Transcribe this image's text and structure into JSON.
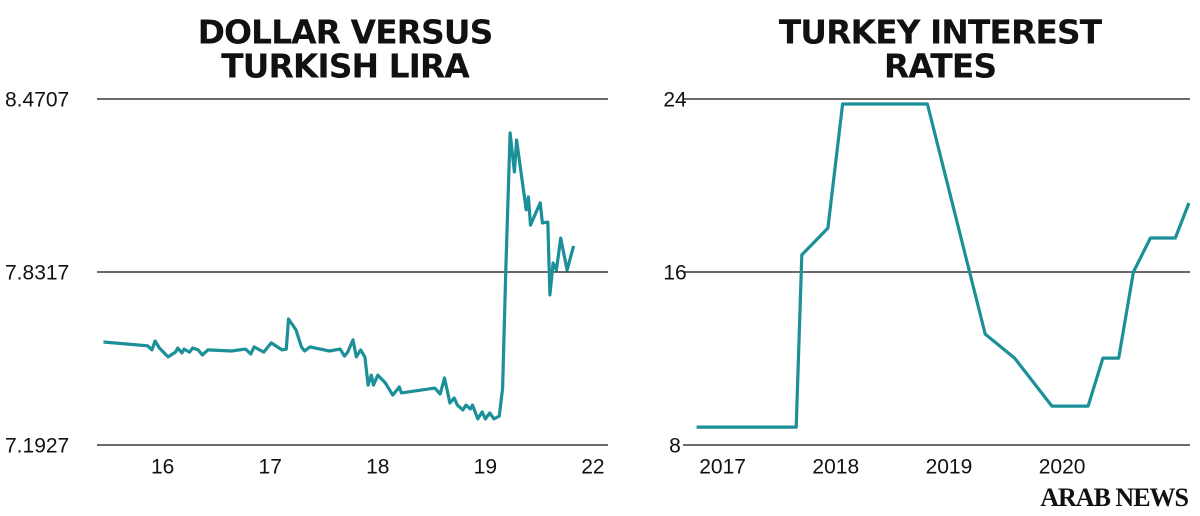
{
  "chart_data": [
    {
      "type": "line",
      "title": [
        "DOLLAR VERSUS",
        "TURKISH LIRA"
      ],
      "color": "#1b9098",
      "grid": true,
      "xlim": [
        0.39,
        5.14
      ],
      "ylim": [
        7.1927,
        8.4707
      ],
      "xticks": [
        {
          "value": 1,
          "label": "16"
        },
        {
          "value": 2,
          "label": "17"
        },
        {
          "value": 3,
          "label": "18"
        },
        {
          "value": 4,
          "label": "19"
        },
        {
          "value": 5,
          "label": "22"
        }
      ],
      "yticks": [
        7.1927,
        7.8317,
        8.4707
      ],
      "x": [
        0.45,
        0.86,
        0.9,
        0.93,
        0.97,
        1.05,
        1.12,
        1.14,
        1.18,
        1.2,
        1.25,
        1.28,
        1.33,
        1.37,
        1.42,
        1.64,
        1.77,
        1.82,
        1.85,
        1.94,
        2.01,
        2.11,
        2.15,
        2.17,
        2.24,
        2.29,
        2.32,
        2.37,
        2.55,
        2.65,
        2.69,
        2.72,
        2.77,
        2.8,
        2.84,
        2.88,
        2.91,
        2.94,
        2.96,
        3.0,
        3.07,
        3.14,
        3.2,
        3.22,
        3.53,
        3.58,
        3.62,
        3.67,
        3.71,
        3.74,
        3.79,
        3.82,
        3.86,
        3.88,
        3.93,
        3.97,
        4.0,
        4.04,
        4.08,
        4.13,
        4.16,
        4.19,
        4.23,
        4.27,
        4.29,
        4.38,
        4.4,
        4.42,
        4.46,
        4.51,
        4.53,
        4.58,
        4.6,
        4.63,
        4.66,
        4.7,
        4.76,
        4.82
      ],
      "values": [
        7.573,
        7.559,
        7.544,
        7.577,
        7.551,
        7.518,
        7.536,
        7.551,
        7.533,
        7.547,
        7.536,
        7.551,
        7.544,
        7.525,
        7.544,
        7.54,
        7.547,
        7.529,
        7.555,
        7.536,
        7.57,
        7.544,
        7.547,
        7.658,
        7.618,
        7.555,
        7.54,
        7.555,
        7.54,
        7.547,
        7.521,
        7.536,
        7.581,
        7.518,
        7.544,
        7.518,
        7.414,
        7.451,
        7.414,
        7.451,
        7.422,
        7.377,
        7.407,
        7.385,
        7.403,
        7.381,
        7.44,
        7.348,
        7.366,
        7.34,
        7.322,
        7.34,
        7.326,
        7.34,
        7.289,
        7.315,
        7.289,
        7.311,
        7.289,
        7.3,
        7.403,
        7.839,
        8.345,
        8.201,
        8.319,
        8.061,
        8.109,
        8.005,
        8.042,
        8.087,
        8.013,
        8.016,
        7.747,
        7.865,
        7.839,
        7.957,
        7.839,
        7.928
      ]
    },
    {
      "type": "line",
      "title": [
        "TURKEY INTEREST",
        "RATES"
      ],
      "color": "#1b9098",
      "grid": true,
      "xlim": [
        2016.65,
        2021.13
      ],
      "ylim": [
        8,
        24
      ],
      "xticks": [
        2017,
        2018,
        2019,
        2020
      ],
      "yticks": [
        8,
        16,
        24
      ],
      "x": [
        2016.77,
        2017.65,
        2017.7,
        2017.93,
        2018.06,
        2018.81,
        2019.32,
        2019.58,
        2019.91,
        2020.23,
        2020.36,
        2020.5,
        2020.63,
        2020.78,
        2021.0,
        2021.12
      ],
      "values": [
        8.83,
        8.83,
        16.79,
        18.03,
        23.77,
        23.77,
        13.13,
        12.02,
        9.8,
        9.8,
        12.02,
        12.02,
        16,
        17.57,
        17.57,
        19.19
      ]
    }
  ],
  "footer": "ARAB NEWS"
}
